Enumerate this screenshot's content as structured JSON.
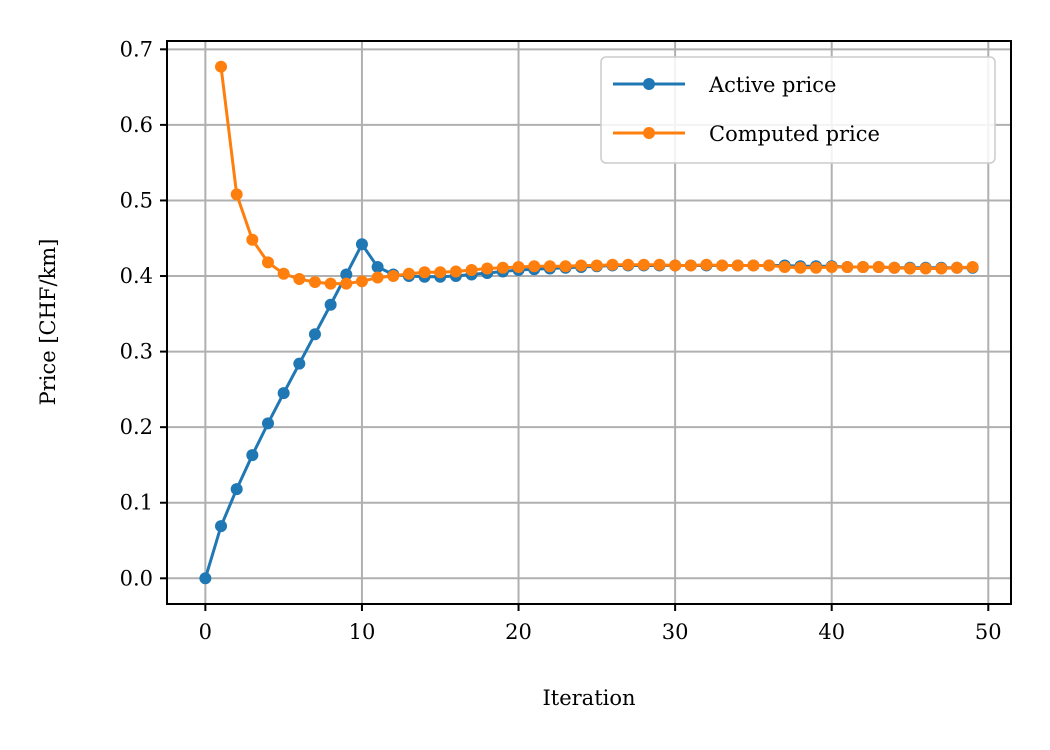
{
  "chart_data": {
    "type": "line",
    "xlabel": "Iteration",
    "ylabel": "Price [CHF/km]",
    "xlim": [
      -2.45,
      51.45
    ],
    "ylim": [
      -0.034,
      0.711
    ],
    "xticks": [
      0,
      10,
      20,
      30,
      40,
      50
    ],
    "yticks": [
      0.0,
      0.1,
      0.2,
      0.3,
      0.4,
      0.5,
      0.6,
      0.7
    ],
    "xtick_labels": [
      "0",
      "10",
      "20",
      "30",
      "40",
      "50"
    ],
    "ytick_labels": [
      "0.0",
      "0.1",
      "0.2",
      "0.3",
      "0.4",
      "0.5",
      "0.6",
      "0.7"
    ],
    "grid": true,
    "legend_position": "top-right",
    "series": [
      {
        "name": "Active price",
        "color": "#1f77b4",
        "marker": "circle",
        "x": [
          0,
          1,
          2,
          3,
          4,
          5,
          6,
          7,
          8,
          9,
          10,
          11,
          12,
          13,
          14,
          15,
          16,
          17,
          18,
          19,
          20,
          21,
          22,
          23,
          24,
          25,
          26,
          27,
          28,
          29,
          30,
          31,
          32,
          33,
          34,
          35,
          36,
          37,
          38,
          39,
          40,
          41,
          42,
          43,
          44,
          45,
          46,
          47,
          48,
          49
        ],
        "y": [
          0.0,
          0.069,
          0.118,
          0.163,
          0.205,
          0.245,
          0.284,
          0.323,
          0.362,
          0.402,
          0.442,
          0.412,
          0.402,
          0.4,
          0.399,
          0.399,
          0.4,
          0.402,
          0.404,
          0.406,
          0.408,
          0.409,
          0.41,
          0.411,
          0.412,
          0.413,
          0.414,
          0.414,
          0.414,
          0.414,
          0.414,
          0.414,
          0.414,
          0.414,
          0.414,
          0.414,
          0.414,
          0.414,
          0.413,
          0.413,
          0.413,
          0.412,
          0.412,
          0.412,
          0.411,
          0.411,
          0.411,
          0.411,
          0.411,
          0.411
        ]
      },
      {
        "name": "Computed price",
        "color": "#ff7f0e",
        "marker": "circle",
        "x": [
          1,
          2,
          3,
          4,
          5,
          6,
          7,
          8,
          9,
          10,
          11,
          12,
          13,
          14,
          15,
          16,
          17,
          18,
          19,
          20,
          21,
          22,
          23,
          24,
          25,
          26,
          27,
          28,
          29,
          30,
          31,
          32,
          33,
          34,
          35,
          36,
          37,
          38,
          39,
          40,
          41,
          42,
          43,
          44,
          45,
          46,
          47,
          48,
          49
        ],
        "y": [
          0.677,
          0.508,
          0.448,
          0.418,
          0.403,
          0.396,
          0.392,
          0.39,
          0.39,
          0.393,
          0.398,
          0.4,
          0.403,
          0.405,
          0.405,
          0.406,
          0.408,
          0.41,
          0.411,
          0.412,
          0.413,
          0.413,
          0.413,
          0.414,
          0.414,
          0.415,
          0.415,
          0.415,
          0.415,
          0.414,
          0.414,
          0.415,
          0.414,
          0.414,
          0.414,
          0.414,
          0.412,
          0.411,
          0.411,
          0.412,
          0.412,
          0.412,
          0.412,
          0.411,
          0.41,
          0.41,
          0.41,
          0.411,
          0.412
        ]
      }
    ]
  }
}
